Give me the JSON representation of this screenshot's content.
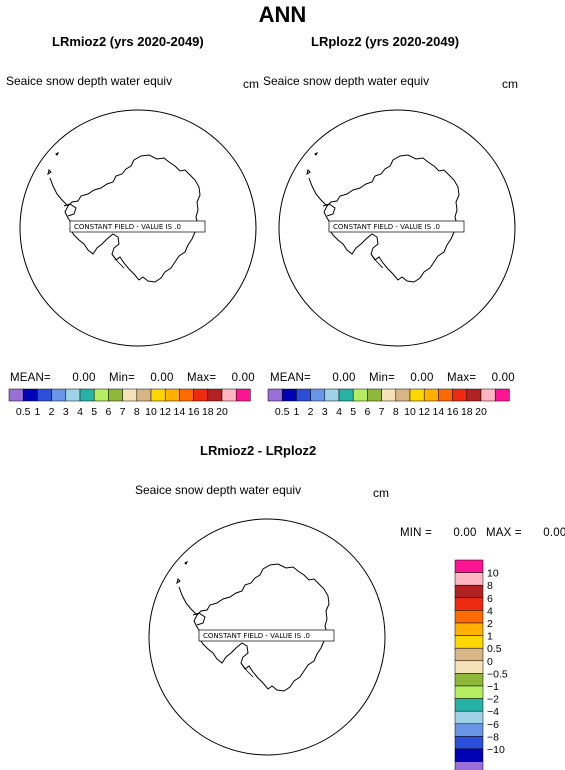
{
  "title": "ANN",
  "panels": [
    {
      "title": "LRmioz2 (yrs 2020-2049)",
      "variable": "Seaice snow depth water equiv",
      "units": "cm",
      "constant_field": "CONSTANT FIELD - VALUE IS .0",
      "stats": {
        "mean_label": "MEAN=",
        "mean": "0.00",
        "min_label": "Min=",
        "min": "0.00",
        "max_label": "Max=",
        "max": "0.00"
      }
    },
    {
      "title": "LRploz2 (yrs 2020-2049)",
      "variable": "Seaice snow depth water equiv",
      "units": "cm",
      "constant_field": "CONSTANT FIELD - VALUE IS .0",
      "stats": {
        "mean_label": "MEAN=",
        "mean": "0.00",
        "min_label": "Min=",
        "min": "0.00",
        "max_label": "Max=",
        "max": "0.00"
      }
    },
    {
      "title": "LRmioz2 - LRploz2",
      "variable": "Seaice snow depth water equiv",
      "units": "cm",
      "constant_field": "CONSTANT FIELD - VALUE IS .0",
      "stats": {
        "min_label": "MIN =",
        "min": "0.00",
        "max_label": "MAX =",
        "max": "0.00"
      }
    }
  ],
  "colorbar_abs": {
    "colors": [
      "#9b6fd8",
      "#0000b4",
      "#2b4fd8",
      "#6a96e8",
      "#9fd2e6",
      "#26b3a6",
      "#b6ee62",
      "#8fb83a",
      "#f5e2b8",
      "#d7b584",
      "#ffd700",
      "#ffb000",
      "#ff6a00",
      "#ee2a10",
      "#b22222",
      "#ffb6c1",
      "#ff1493"
    ],
    "labels": [
      "0.5",
      "1",
      "2",
      "3",
      "4",
      "5",
      "6",
      "7",
      "8",
      "10",
      "12",
      "14",
      "16",
      "18",
      "20"
    ]
  },
  "colorbar_diff": {
    "colors_top_to_bottom": [
      "#ff1493",
      "#ffb6c1",
      "#b22222",
      "#ee2a10",
      "#ff6a00",
      "#ffb000",
      "#ffd700",
      "#d7b584",
      "#f5e2b8",
      "#8fb83a",
      "#b6ee62",
      "#26b3a6",
      "#9fd2e6",
      "#6a96e8",
      "#2b4fd8",
      "#0000b4",
      "#9b6fd8"
    ],
    "labels_top_to_bottom": [
      "10",
      "8",
      "6",
      "4",
      "2",
      "1",
      "0.5",
      "0",
      "−0.5",
      "−1",
      "−2",
      "−4",
      "−6",
      "−8",
      "−10"
    ]
  }
}
